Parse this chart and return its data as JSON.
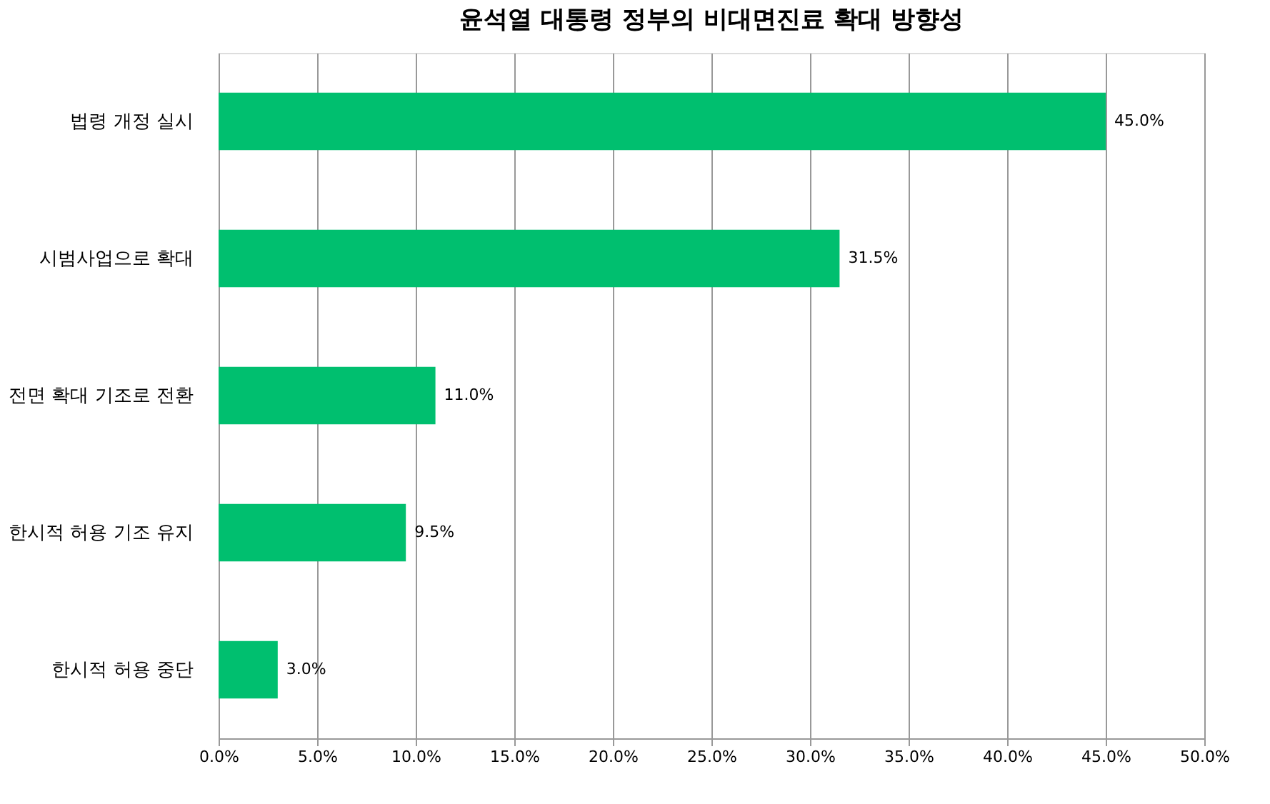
{
  "chart_data": {
    "type": "bar",
    "orientation": "horizontal",
    "title": "윤석열 대통령 정부의 비대면진료 확대 방향성",
    "categories": [
      "법령 개정 실시",
      "시범사업으로 확대",
      "전면 확대 기조로 전환",
      "한시적 허용 기조 유지",
      "한시적 허용 중단"
    ],
    "values": [
      45.0,
      31.5,
      11.0,
      9.5,
      3.0
    ],
    "value_labels": [
      "45.0%",
      "31.5%",
      "11.0%",
      "9.5%",
      "3.0%"
    ],
    "color": "#00bf6f",
    "xlim": [
      0,
      50
    ],
    "xticks": [
      {
        "value": 0,
        "label": "0.0%"
      },
      {
        "value": 5,
        "label": "5.0%"
      },
      {
        "value": 10,
        "label": "10.0%"
      },
      {
        "value": 15,
        "label": "15.0%"
      },
      {
        "value": 20,
        "label": "20.0%"
      },
      {
        "value": 25,
        "label": "25.0%"
      },
      {
        "value": 30,
        "label": "30.0%"
      },
      {
        "value": 35,
        "label": "35.0%"
      },
      {
        "value": 40,
        "label": "40.0%"
      },
      {
        "value": 45,
        "label": "45.0%"
      },
      {
        "value": 50,
        "label": "50.0%"
      }
    ],
    "grid": "x"
  }
}
